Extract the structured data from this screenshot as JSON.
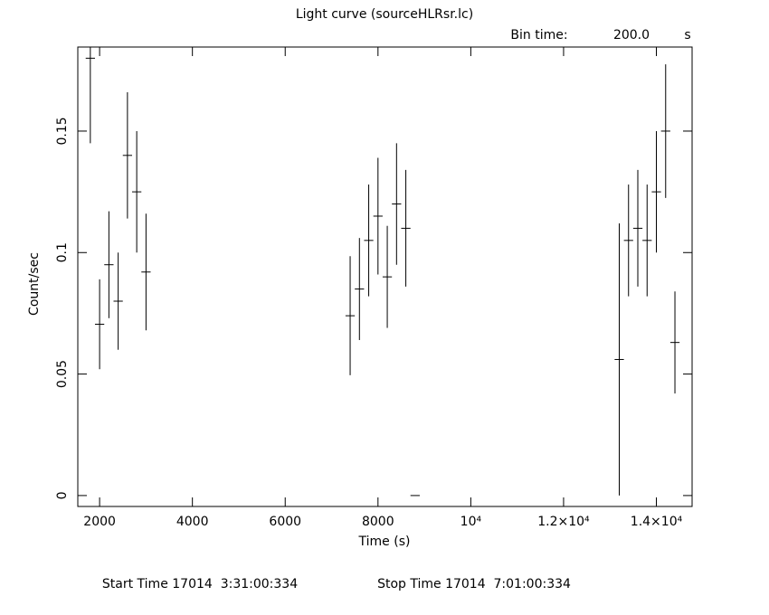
{
  "chart_data": {
    "type": "errorbar",
    "title": "Light curve (sourceHLRsr.lc)",
    "bin_time_label": "Bin time:",
    "bin_time": {
      "value": 200,
      "label": "200.0"
    },
    "bin_time_unit": "s",
    "xlabel": "Time (s)",
    "ylabel": "Count/sec",
    "start_time": "Start Time 17014  3:31:00:334",
    "stop_time": "Stop Time 17014  7:01:00:334",
    "x": [
      1800,
      2000,
      2200,
      2400,
      2600,
      2800,
      3000,
      7400,
      7600,
      7800,
      8000,
      8200,
      8400,
      8600,
      8800,
      13200,
      13400,
      13600,
      13800,
      14000,
      14200,
      14400
    ],
    "values": [
      0.18,
      0.0705,
      0.095,
      0.08,
      0.14,
      0.125,
      0.092,
      0.074,
      0.085,
      0.105,
      0.115,
      0.09,
      0.12,
      0.11,
      0,
      0.056,
      0.105,
      0.11,
      0.105,
      0.125,
      0.15,
      0.063
    ],
    "errors": [
      0.035,
      0.0185,
      0.022,
      0.02,
      0.026,
      0.025,
      0.024,
      0.0245,
      0.021,
      0.023,
      0.024,
      0.021,
      0.025,
      0.024,
      0,
      0.056,
      0.023,
      0.024,
      0.023,
      0.025,
      0.0275,
      0.021
    ],
    "color": "#000000",
    "xlim": [
      1530,
      14770
    ],
    "ylim": [
      -0.0045,
      0.1846
    ],
    "xticks": [
      2000,
      4000,
      6000,
      8000,
      {
        "value": 10000,
        "label": "10⁴"
      },
      {
        "value": 12000,
        "label": "1.2×10⁴"
      },
      {
        "value": 14000,
        "label": "1.4×10⁴"
      }
    ],
    "yticks": [
      0,
      0.05,
      0.1,
      0.15
    ]
  }
}
